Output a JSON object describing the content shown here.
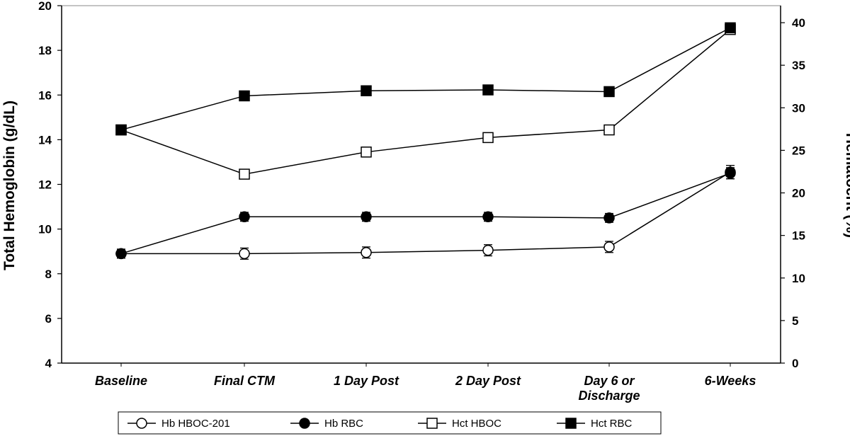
{
  "chart_data": {
    "type": "line",
    "categories": [
      "Baseline",
      "Final CTM",
      "1 Day Post",
      "2 Day Post",
      "Day 6 or|Discharge",
      "6-Weeks"
    ],
    "left_axis": {
      "label": "Total Hemoglobin (g/dL)",
      "ylim": [
        4,
        20
      ],
      "ticks": [
        4,
        6,
        8,
        10,
        12,
        14,
        16,
        18,
        20
      ]
    },
    "right_axis": {
      "label": "Hematocrit (%)",
      "ylim": [
        0,
        42
      ],
      "ticks": [
        0,
        5,
        10,
        15,
        20,
        25,
        30,
        35,
        40
      ]
    },
    "series": [
      {
        "name": "Hb HBOC-201",
        "axis": "left",
        "marker": "circle-open",
        "values": [
          8.9,
          8.9,
          8.95,
          9.05,
          9.2,
          12.55
        ],
        "error": [
          0.2,
          0.25,
          0.25,
          0.25,
          0.25,
          0.3
        ]
      },
      {
        "name": "Hb RBC",
        "axis": "left",
        "marker": "circle-filled",
        "values": [
          8.9,
          10.55,
          10.55,
          10.55,
          10.5,
          12.5
        ],
        "error": [
          0.2,
          0.2,
          0.2,
          0.2,
          0.2,
          0.25
        ]
      },
      {
        "name": "Hct HBOC",
        "axis": "right",
        "marker": "square-open",
        "values": [
          27.4,
          22.2,
          24.8,
          26.5,
          27.4,
          39.2
        ],
        "error": []
      },
      {
        "name": "Hct RBC",
        "axis": "right",
        "marker": "square-filled",
        "values": [
          27.4,
          31.4,
          32.0,
          32.1,
          31.9,
          39.4
        ],
        "error": []
      }
    ]
  }
}
